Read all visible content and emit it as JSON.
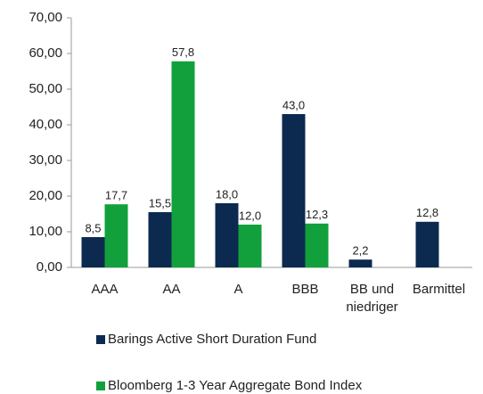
{
  "chart_data": {
    "type": "bar",
    "categories": [
      "AAA",
      "AA",
      "A",
      "BBB",
      "BB und niedriger",
      "Barmittel"
    ],
    "series": [
      {
        "name": "Barings Active Short Duration Fund",
        "color": "#0c2a4f",
        "values": [
          8.5,
          15.5,
          18.0,
          43.0,
          2.2,
          12.8
        ],
        "value_labels": [
          "8,5",
          "15,5",
          "18,0",
          "43,0",
          "2,2",
          "12,8"
        ]
      },
      {
        "name": "Bloomberg 1-3 Year Aggregate Bond Index",
        "color": "#12a03c",
        "values": [
          17.7,
          57.8,
          12.0,
          12.3,
          null,
          null
        ],
        "value_labels": [
          "17,7",
          "57,8",
          "12,0",
          "12,3",
          null,
          null
        ]
      }
    ],
    "ylim": [
      0,
      70
    ],
    "yticks": [
      {
        "value": 0,
        "label": "0,00"
      },
      {
        "value": 10,
        "label": "10,00"
      },
      {
        "value": 20,
        "label": "20,00"
      },
      {
        "value": 30,
        "label": "30,00"
      },
      {
        "value": 40,
        "label": "40,00"
      },
      {
        "value": 50,
        "label": "50,00"
      },
      {
        "value": 60,
        "label": "60,00"
      },
      {
        "value": 70,
        "label": "70,00"
      }
    ],
    "grid": false,
    "legend": "bottom"
  }
}
